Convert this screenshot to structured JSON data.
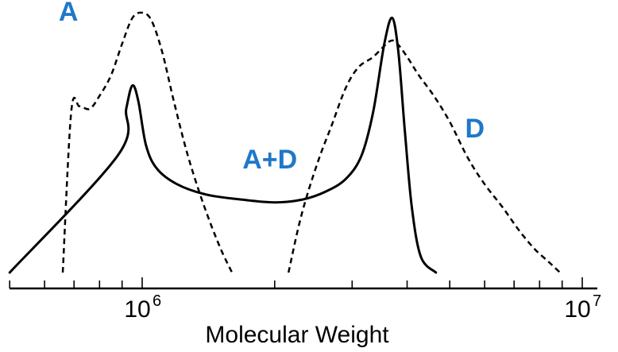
{
  "chart_data": {
    "type": "line",
    "title": "",
    "xlabel": "Molecular Weight",
    "ylabel": "",
    "x_scale": "log",
    "xlim": [
      400000,
      11000000
    ],
    "ylim": [
      0,
      1
    ],
    "grid": false,
    "legend": "none",
    "label_color": "#1f78c8",
    "x_ticks": [
      {
        "base": "10",
        "exp": "6",
        "value": 1000000
      },
      {
        "base": "10",
        "exp": "7",
        "value": 10000000
      }
    ],
    "series": [
      {
        "name": "A",
        "style": "dashed",
        "x": [
          660000,
          690000,
          720000,
          760000,
          800000,
          850000,
          900000,
          950000,
          1000000,
          1050000,
          1110000,
          1180000,
          1270000,
          1380000,
          1500000,
          1600000
        ],
        "y": [
          0.0,
          0.62,
          0.64,
          0.63,
          0.68,
          0.76,
          0.88,
          0.98,
          1.0,
          0.97,
          0.85,
          0.66,
          0.45,
          0.26,
          0.1,
          0.0
        ]
      },
      {
        "name": "A+D",
        "style": "solid",
        "x": [
          500000,
          880000,
          920000,
          950000,
          980000,
          1020000,
          1080000,
          1200000,
          1400000,
          1700000,
          2000000,
          2300000,
          2600000,
          2900000,
          3150000,
          3350000,
          3550000,
          3700000,
          3820000,
          3950000,
          4100000,
          4300000,
          4650000
        ],
        "y": [
          0.0,
          0.45,
          0.63,
          0.72,
          0.66,
          0.49,
          0.4,
          0.34,
          0.3,
          0.28,
          0.27,
          0.28,
          0.31,
          0.36,
          0.45,
          0.62,
          0.88,
          0.98,
          0.85,
          0.55,
          0.25,
          0.06,
          0.0
        ]
      },
      {
        "name": "D",
        "style": "dashed",
        "x": [
          2150000,
          2300000,
          2500000,
          2700000,
          2900000,
          3100000,
          3350000,
          3650000,
          3800000,
          4000000,
          4250000,
          4600000,
          5000000,
          5500000,
          6000000,
          6600000,
          7200000,
          7800000,
          8400000,
          8900000
        ],
        "y": [
          0.0,
          0.22,
          0.42,
          0.57,
          0.71,
          0.79,
          0.83,
          0.89,
          0.88,
          0.83,
          0.76,
          0.68,
          0.58,
          0.44,
          0.34,
          0.25,
          0.16,
          0.09,
          0.04,
          0.0
        ]
      }
    ],
    "annotations": [
      {
        "series": "A",
        "text": "A",
        "at_x": 680000,
        "at_y": 0.97
      },
      {
        "series": "A+D",
        "text": "A+D",
        "at_x": 1950000,
        "at_y": 0.4
      },
      {
        "series": "D",
        "text": "D",
        "at_x": 5700000,
        "at_y": 0.52
      }
    ]
  }
}
